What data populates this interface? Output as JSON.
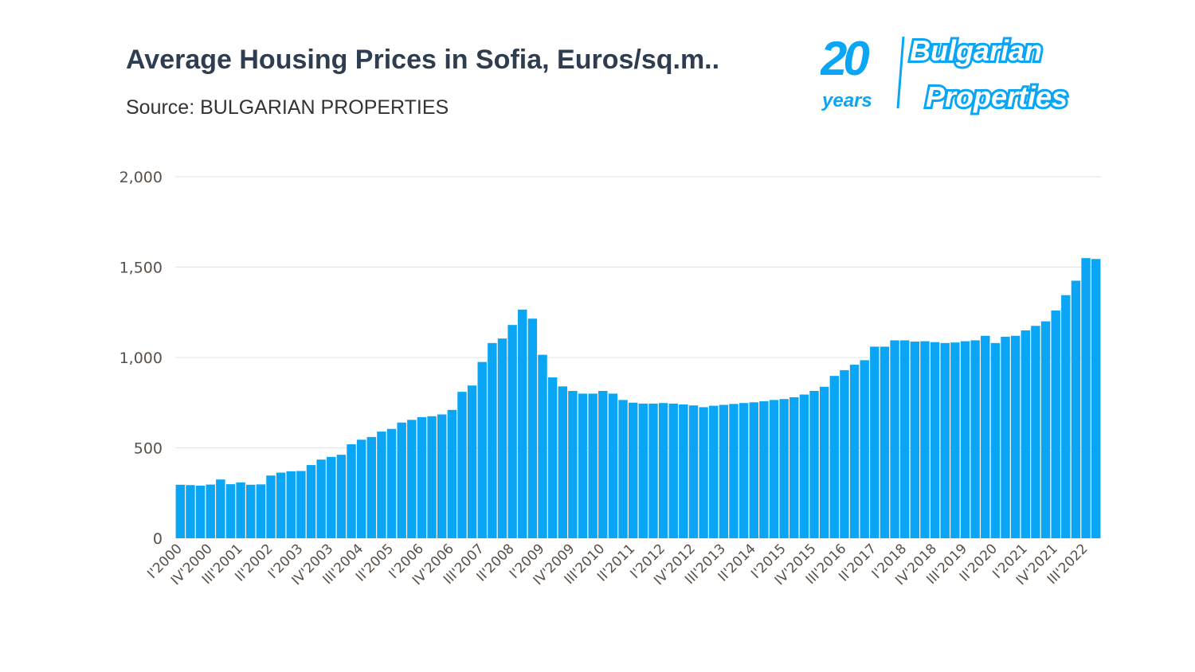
{
  "header": {
    "title": "Average Housing Prices in Sofia, Euros/sq.m..",
    "subtitle": "Source: BULGARIAN PROPERTIES"
  },
  "logo": {
    "number": "20",
    "years": "years",
    "line1": "Bulgarian",
    "line2": "Properties",
    "color": "#0aa6f5"
  },
  "chart_data": {
    "type": "bar",
    "title": "Average Housing Prices in Sofia, Euros/sq.m..",
    "subtitle": "Source: BULGARIAN PROPERTIES",
    "xlabel": "",
    "ylabel": "",
    "ylim": [
      0,
      2000
    ],
    "yticks": [
      0,
      500,
      1000,
      1500,
      2000
    ],
    "ytick_labels": [
      "0",
      "500",
      "1,000",
      "1,500",
      "2,000"
    ],
    "grid": true,
    "bar_color": "#0aa6f5",
    "start_year": 2000,
    "xtick_labels": [
      "I'2000",
      "IV'2000",
      "III'2001",
      "II'2002",
      "I'2003",
      "IV'2003",
      "III'2004",
      "II'2005",
      "I'2006",
      "IV'2006",
      "III'2007",
      "II'2008",
      "I'2009",
      "IV'2009",
      "III'2010",
      "II'2011",
      "I'2012",
      "IV'2012",
      "III'2013",
      "II'2014",
      "I'2015",
      "IV'2015",
      "III'2016",
      "II'2017",
      "I'2018",
      "IV'2018",
      "III'2019",
      "II'2020",
      "I'2021",
      "IV'2021",
      "III'2022"
    ],
    "values": [
      296,
      294,
      291,
      297,
      325,
      299,
      309,
      296,
      298,
      347,
      363,
      370,
      372,
      405,
      435,
      450,
      462,
      520,
      545,
      560,
      590,
      605,
      640,
      655,
      670,
      675,
      685,
      710,
      810,
      845,
      975,
      1080,
      1105,
      1180,
      1265,
      1215,
      1015,
      890,
      840,
      815,
      800,
      800,
      815,
      800,
      765,
      750,
      745,
      745,
      748,
      745,
      740,
      735,
      725,
      733,
      738,
      743,
      748,
      752,
      758,
      765,
      770,
      780,
      795,
      815,
      838,
      898,
      930,
      960,
      985,
      1060,
      1060,
      1095,
      1095,
      1088,
      1090,
      1085,
      1080,
      1083,
      1090,
      1095,
      1120,
      1080,
      1115,
      1120,
      1150,
      1175,
      1200,
      1260,
      1345,
      1425,
      1550,
      1545
    ]
  }
}
